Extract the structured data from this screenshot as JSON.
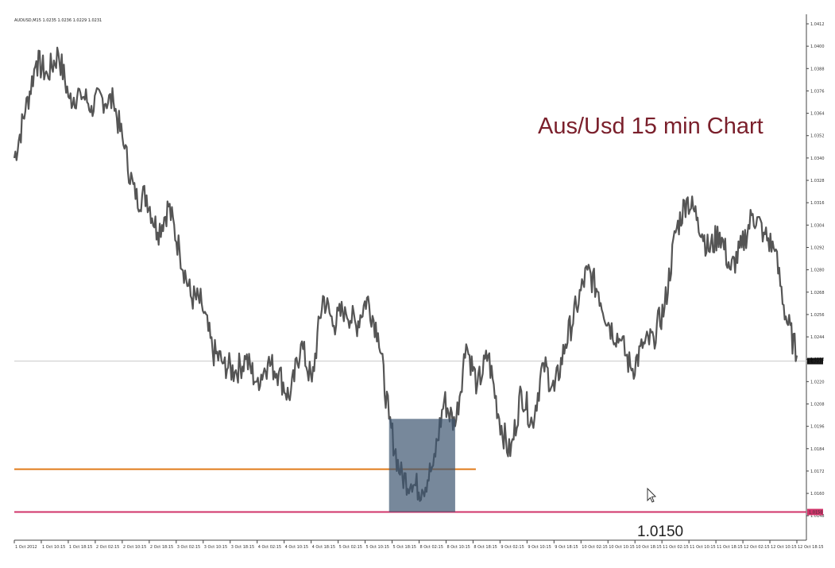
{
  "chart_data": {
    "type": "line",
    "symbol_label": "AUDUSD,M15  1.0235 1.0236 1.0229 1.0231",
    "title": "Aus/Usd 15 min Chart",
    "title_color": "#7a1f2b",
    "price_line_color": "#555555",
    "ylim": [
      1.014,
      1.0412
    ],
    "y_ticks": [
      1.0412,
      1.04,
      1.0388,
      1.0376,
      1.0364,
      1.0352,
      1.034,
      1.0328,
      1.0316,
      1.0304,
      1.0292,
      1.028,
      1.0268,
      1.0256,
      1.0244,
      1.0232,
      1.022,
      1.0208,
      1.0196,
      1.0184,
      1.0172,
      1.016,
      1.0148
    ],
    "x_tick_labels": [
      "1 Oct 2012",
      "1 Oct 10:15",
      "1 Oct 18:15",
      "2 Oct 02:15",
      "2 Oct 10:15",
      "2 Oct 18:15",
      "3 Oct 02:15",
      "3 Oct 10:15",
      "3 Oct 18:15",
      "4 Oct 02:15",
      "4 Oct 10:15",
      "4 Oct 18:15",
      "5 Oct 02:15",
      "5 Oct 10:15",
      "5 Oct 18:15",
      "8 Oct 02:15",
      "8 Oct 10:15",
      "8 Oct 18:15",
      "9 Oct 02:15",
      "9 Oct 10:15",
      "9 Oct 18:15",
      "10 Oct 02:15",
      "10 Oct 10:15",
      "10 Oct 18:15",
      "11 Oct 02:15",
      "11 Oct 10:15",
      "11 Oct 18:15",
      "12 Oct 02:15",
      "12 Oct 10:15",
      "12 Oct 18:15"
    ],
    "current_price": 1.0231,
    "current_price_label": "1.0231",
    "series": [
      {
        "values": [
          1.034,
          1.0365,
          1.0392,
          1.0385,
          1.0396,
          1.0372,
          1.0375,
          1.0368,
          1.0372,
          1.037,
          1.0345,
          1.0318,
          1.032,
          1.03,
          1.0314,
          1.029,
          1.0266,
          1.0262,
          1.0236,
          1.023,
          1.0225,
          1.0232,
          1.022,
          1.023,
          1.0225,
          1.021,
          1.024,
          1.022,
          1.0266,
          1.025,
          1.026,
          1.025,
          1.0265,
          1.0246,
          1.02,
          1.017,
          1.0165,
          1.0162,
          1.0175,
          1.021,
          1.0196,
          1.024,
          1.0218,
          1.0234,
          1.02,
          1.018,
          1.0215,
          1.0198,
          1.023,
          1.0215,
          1.024,
          1.026,
          1.028,
          1.0268,
          1.025,
          1.0242,
          1.0226,
          1.0238,
          1.0244,
          1.026,
          1.03,
          1.0318,
          1.0308,
          1.029,
          1.03,
          1.028,
          1.0292,
          1.031,
          1.03,
          1.029,
          1.0255,
          1.0234
        ]
      }
    ],
    "horizontal_levels": [
      {
        "value": 1.0173,
        "color": "#e07b1a"
      },
      {
        "value": 1.015,
        "color": "#d0336a",
        "label": "1.0150",
        "marker_label": "1.0150"
      }
    ],
    "highlight_box": {
      "x_start": 34,
      "x_end": 40,
      "y_low": 1.015,
      "y_high": 1.02,
      "color": "#3d5570"
    },
    "grid": false
  }
}
